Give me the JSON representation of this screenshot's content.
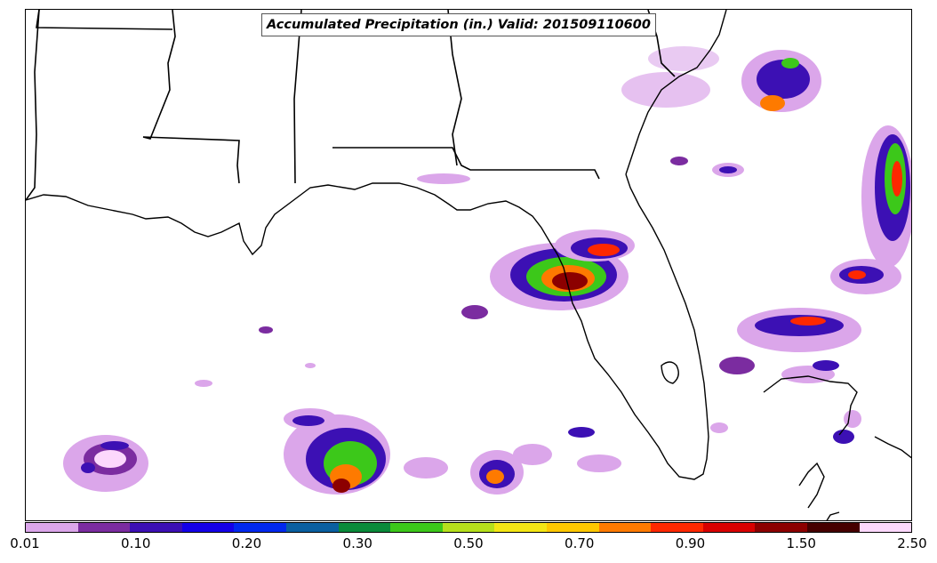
{
  "map": {
    "title": "Accumulated Precipitation (in.) Valid: 201509110600",
    "legend_tick_labels": [
      "0.01",
      "0.10",
      "0.20",
      "0.30",
      "0.50",
      "0.70",
      "0.90",
      "1.50",
      "2.50"
    ],
    "color_scale": [
      "#dba6ea",
      "#7b2ca0",
      "#3c10b4",
      "#1400e8",
      "#0028ee",
      "#0a5fa0",
      "#0a8a3a",
      "#3cc81a",
      "#b6e01c",
      "#f4e614",
      "#fec800",
      "#fe7a00",
      "#fe2800",
      "#d80000",
      "#8c0000",
      "#460000",
      "#fcd8fc"
    ],
    "features": [
      "coastline",
      "state-borders",
      "precipitation-field"
    ]
  }
}
